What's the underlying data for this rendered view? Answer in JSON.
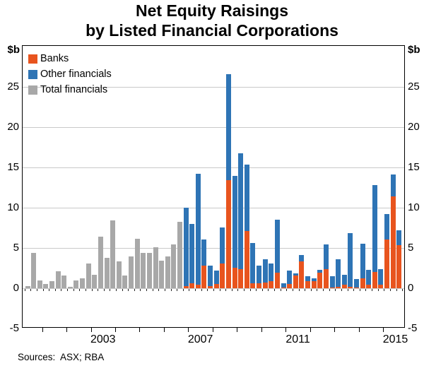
{
  "title_line1": "Net Equity Raisings",
  "title_line2": "by Listed Financial Corporations",
  "source_note": "Sources:  ASX; RBA",
  "y_axis": {
    "unit": "$b",
    "ticks": [
      -5,
      0,
      5,
      10,
      15,
      20,
      25
    ]
  },
  "x_axis": {
    "labels": [
      "2003",
      "2007",
      "2011",
      "2015"
    ],
    "first_tick_year": 2001,
    "last_tick_year": 2015
  },
  "legend": {
    "items": [
      {
        "key": "banks",
        "label": "Banks",
        "color": "#E8541E"
      },
      {
        "key": "other",
        "label": "Other financials",
        "color": "#2E74B5"
      },
      {
        "key": "total",
        "label": "Total financials",
        "color": "#A8A8A8"
      }
    ]
  },
  "colors": {
    "banks": "#E8541E",
    "other_financials": "#2E74B5",
    "total_financials": "#A8A8A8",
    "gridline": "#c9c9c9",
    "frame": "#000000"
  },
  "chart_data": {
    "type": "bar",
    "stacked": true,
    "frequency": "quarterly",
    "title": "Net Equity Raisings by Listed Financial Corporations",
    "ylabel": "$b",
    "ylim": [
      -5,
      30
    ],
    "grid": true,
    "legend_position": "top-left",
    "series_note": "Grey bars = Total financials (2000Q2-2006Q3); stacked orange Banks + blue Other financials from 2006Q4",
    "bars": [
      {
        "q": "2000Q2",
        "total": 0.3
      },
      {
        "q": "2000Q3",
        "total": 4.4
      },
      {
        "q": "2000Q4",
        "total": 1.0
      },
      {
        "q": "2001Q1",
        "total": 0.5
      },
      {
        "q": "2001Q2",
        "total": 0.9
      },
      {
        "q": "2001Q3",
        "total": 2.1
      },
      {
        "q": "2001Q4",
        "total": 1.6
      },
      {
        "q": "2002Q1",
        "total": 0.2
      },
      {
        "q": "2002Q2",
        "total": 1.0
      },
      {
        "q": "2002Q3",
        "total": 1.2
      },
      {
        "q": "2002Q4",
        "total": 3.1
      },
      {
        "q": "2003Q1",
        "total": 1.7
      },
      {
        "q": "2003Q2",
        "total": 6.4
      },
      {
        "q": "2003Q3",
        "total": 3.8
      },
      {
        "q": "2003Q4",
        "total": 8.4
      },
      {
        "q": "2004Q1",
        "total": 3.3
      },
      {
        "q": "2004Q2",
        "total": 1.6
      },
      {
        "q": "2004Q3",
        "total": 3.9
      },
      {
        "q": "2004Q4",
        "total": 6.1
      },
      {
        "q": "2005Q1",
        "total": 4.4
      },
      {
        "q": "2005Q2",
        "total": 4.4
      },
      {
        "q": "2005Q3",
        "total": 5.1
      },
      {
        "q": "2005Q4",
        "total": 3.4
      },
      {
        "q": "2006Q1",
        "total": 3.9
      },
      {
        "q": "2006Q2",
        "total": 5.4
      },
      {
        "q": "2006Q3",
        "total": 8.2
      },
      {
        "q": "2006Q4",
        "banks": 0.3,
        "other": 9.7
      },
      {
        "q": "2007Q1",
        "banks": 0.6,
        "other": 7.4
      },
      {
        "q": "2007Q2",
        "banks": 0.4,
        "other": 13.8
      },
      {
        "q": "2007Q3",
        "banks": 2.8,
        "other": 3.2
      },
      {
        "q": "2007Q4",
        "banks": 0.3,
        "other": 2.5
      },
      {
        "q": "2008Q1",
        "banks": 0.5,
        "other": 1.7
      },
      {
        "q": "2008Q2",
        "banks": 3.1,
        "other": 4.4
      },
      {
        "q": "2008Q3",
        "banks": 13.4,
        "other": 13.1
      },
      {
        "q": "2008Q4",
        "banks": 2.5,
        "other": 11.4
      },
      {
        "q": "2009Q1",
        "banks": 2.4,
        "other": 14.3
      },
      {
        "q": "2009Q2",
        "banks": 7.1,
        "other": 8.2
      },
      {
        "q": "2009Q3",
        "banks": 0.6,
        "other": 5.0
      },
      {
        "q": "2009Q4",
        "banks": 0.6,
        "other": 2.2
      },
      {
        "q": "2010Q1",
        "banks": 0.7,
        "other": 2.9
      },
      {
        "q": "2010Q2",
        "banks": 0.9,
        "other": 2.2
      },
      {
        "q": "2010Q3",
        "banks": 1.9,
        "other": 6.6
      },
      {
        "q": "2010Q4",
        "banks": 0.1,
        "other": 0.5
      },
      {
        "q": "2011Q1",
        "banks": 0.5,
        "other": 1.7
      },
      {
        "q": "2011Q2",
        "banks": 1.6,
        "other": 0.2
      },
      {
        "q": "2011Q3",
        "banks": 3.3,
        "other": 0.8
      },
      {
        "q": "2011Q4",
        "banks": 0.9,
        "other": 0.6
      },
      {
        "q": "2012Q1",
        "banks": 0.9,
        "other": 0.3
      },
      {
        "q": "2012Q2",
        "banks": 1.9,
        "other": 0.4
      },
      {
        "q": "2012Q3",
        "banks": 2.4,
        "other": 3.0
      },
      {
        "q": "2012Q4",
        "banks": 0.1,
        "other": 1.4
      },
      {
        "q": "2013Q1",
        "banks": 0.2,
        "other": 3.4
      },
      {
        "q": "2013Q2",
        "banks": 0.4,
        "other": 1.3
      },
      {
        "q": "2013Q3",
        "banks": 0.2,
        "other": 6.6
      },
      {
        "q": "2013Q4",
        "banks": 0.1,
        "other": 1.0
      },
      {
        "q": "2014Q1",
        "banks": 1.2,
        "other": 4.3
      },
      {
        "q": "2014Q2",
        "banks": 0.4,
        "other": 1.9
      },
      {
        "q": "2014Q3",
        "banks": 2.0,
        "other": 10.8
      },
      {
        "q": "2014Q4",
        "banks": 0.4,
        "other": 2.0
      },
      {
        "q": "2015Q1",
        "banks": 6.0,
        "other": 3.2
      },
      {
        "q": "2015Q2",
        "banks": 11.4,
        "other": 2.7
      },
      {
        "q": "2015Q3",
        "banks": 5.3,
        "other": 1.9
      }
    ]
  }
}
